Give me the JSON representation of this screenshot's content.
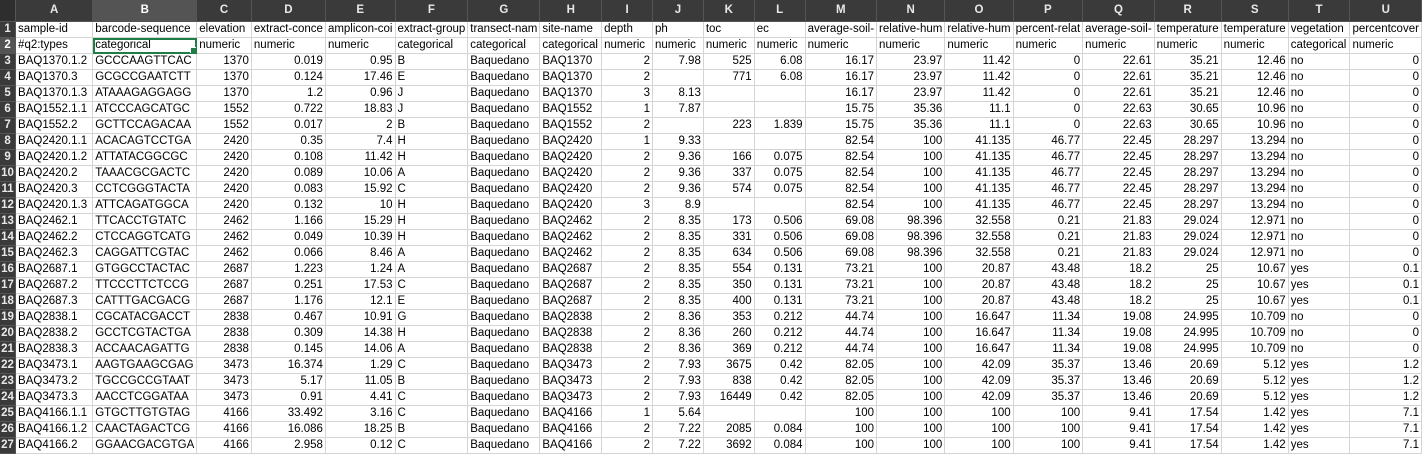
{
  "columns": [
    "A",
    "B",
    "C",
    "D",
    "E",
    "F",
    "G",
    "H",
    "I",
    "J",
    "K",
    "L",
    "M",
    "N",
    "O",
    "P",
    "Q",
    "R",
    "S",
    "T",
    "U"
  ],
  "numeric_cols": [
    2,
    3,
    4,
    8,
    9,
    10,
    11,
    12,
    13,
    14,
    15,
    16,
    17,
    18,
    20
  ],
  "selected_cell": "B2",
  "rows": [
    [
      "sample-id",
      "barcode-sequence",
      "elevation",
      "extract-conce",
      "amplicon-coi",
      "extract-group",
      "transect-nam",
      "site-name",
      "depth",
      "ph",
      "toc",
      "ec",
      "average-soil-",
      "relative-hum",
      "relative-hum",
      "percent-relat",
      "average-soil-",
      "temperature",
      "temperature",
      "vegetation",
      "percentcover"
    ],
    [
      "#q2:types",
      "categorical",
      "numeric",
      "numeric",
      "numeric",
      "categorical",
      "categorical",
      "categorical",
      "numeric",
      "numeric",
      "numeric",
      "numeric",
      "numeric",
      "numeric",
      "numeric",
      "numeric",
      "numeric",
      "numeric",
      "numeric",
      "categorical",
      "numeric"
    ],
    [
      "BAQ1370.1.2",
      "GCCCAAGTTCAC",
      "1370",
      "0.019",
      "0.95",
      "B",
      "Baquedano",
      "BAQ1370",
      "2",
      "7.98",
      "525",
      "6.08",
      "16.17",
      "23.97",
      "11.42",
      "0",
      "22.61",
      "35.21",
      "12.46",
      "no",
      "0"
    ],
    [
      "BAQ1370.3",
      "GCGCCGAATCTT",
      "1370",
      "0.124",
      "17.46",
      "E",
      "Baquedano",
      "BAQ1370",
      "2",
      "",
      "771",
      "6.08",
      "16.17",
      "23.97",
      "11.42",
      "0",
      "22.61",
      "35.21",
      "12.46",
      "no",
      "0"
    ],
    [
      "BAQ1370.1.3",
      "ATAAAGAGGAGG",
      "1370",
      "1.2",
      "0.96",
      "J",
      "Baquedano",
      "BAQ1370",
      "3",
      "8.13",
      "",
      "",
      "16.17",
      "23.97",
      "11.42",
      "0",
      "22.61",
      "35.21",
      "12.46",
      "no",
      "0"
    ],
    [
      "BAQ1552.1.1",
      "ATCCCAGCATGC",
      "1552",
      "0.722",
      "18.83",
      "J",
      "Baquedano",
      "BAQ1552",
      "1",
      "7.87",
      "",
      "",
      "15.75",
      "35.36",
      "11.1",
      "0",
      "22.63",
      "30.65",
      "10.96",
      "no",
      "0"
    ],
    [
      "BAQ1552.2",
      "GCTTCCAGACAA",
      "1552",
      "0.017",
      "2",
      "B",
      "Baquedano",
      "BAQ1552",
      "2",
      "",
      "223",
      "1.839",
      "15.75",
      "35.36",
      "11.1",
      "0",
      "22.63",
      "30.65",
      "10.96",
      "no",
      "0"
    ],
    [
      "BAQ2420.1.1",
      "ACACAGTCCTGA",
      "2420",
      "0.35",
      "7.4",
      "H",
      "Baquedano",
      "BAQ2420",
      "1",
      "9.33",
      "",
      "",
      "82.54",
      "100",
      "41.135",
      "46.77",
      "22.45",
      "28.297",
      "13.294",
      "no",
      "0"
    ],
    [
      "BAQ2420.1.2",
      "ATTATACGGCGC",
      "2420",
      "0.108",
      "11.42",
      "H",
      "Baquedano",
      "BAQ2420",
      "2",
      "9.36",
      "166",
      "0.075",
      "82.54",
      "100",
      "41.135",
      "46.77",
      "22.45",
      "28.297",
      "13.294",
      "no",
      "0"
    ],
    [
      "BAQ2420.2",
      "TAAACGCGACTC",
      "2420",
      "0.089",
      "10.06",
      "A",
      "Baquedano",
      "BAQ2420",
      "2",
      "9.36",
      "337",
      "0.075",
      "82.54",
      "100",
      "41.135",
      "46.77",
      "22.45",
      "28.297",
      "13.294",
      "no",
      "0"
    ],
    [
      "BAQ2420.3",
      "CCTCGGGTACTA",
      "2420",
      "0.083",
      "15.92",
      "C",
      "Baquedano",
      "BAQ2420",
      "2",
      "9.36",
      "574",
      "0.075",
      "82.54",
      "100",
      "41.135",
      "46.77",
      "22.45",
      "28.297",
      "13.294",
      "no",
      "0"
    ],
    [
      "BAQ2420.1.3",
      "ATTCAGATGGCA",
      "2420",
      "0.132",
      "10",
      "H",
      "Baquedano",
      "BAQ2420",
      "3",
      "8.9",
      "",
      "",
      "82.54",
      "100",
      "41.135",
      "46.77",
      "22.45",
      "28.297",
      "13.294",
      "no",
      "0"
    ],
    [
      "BAQ2462.1",
      "TTCACCTGTATC",
      "2462",
      "1.166",
      "15.29",
      "H",
      "Baquedano",
      "BAQ2462",
      "2",
      "8.35",
      "173",
      "0.506",
      "69.08",
      "98.396",
      "32.558",
      "0.21",
      "21.83",
      "29.024",
      "12.971",
      "no",
      "0"
    ],
    [
      "BAQ2462.2",
      "CTCCAGGTCATG",
      "2462",
      "0.049",
      "10.39",
      "H",
      "Baquedano",
      "BAQ2462",
      "2",
      "8.35",
      "331",
      "0.506",
      "69.08",
      "98.396",
      "32.558",
      "0.21",
      "21.83",
      "29.024",
      "12.971",
      "no",
      "0"
    ],
    [
      "BAQ2462.3",
      "CAGGATTCGTAC",
      "2462",
      "0.066",
      "8.46",
      "A",
      "Baquedano",
      "BAQ2462",
      "2",
      "8.35",
      "634",
      "0.506",
      "69.08",
      "98.396",
      "32.558",
      "0.21",
      "21.83",
      "29.024",
      "12.971",
      "no",
      "0"
    ],
    [
      "BAQ2687.1",
      "GTGGCCTACTAC",
      "2687",
      "1.223",
      "1.24",
      "A",
      "Baquedano",
      "BAQ2687",
      "2",
      "8.35",
      "554",
      "0.131",
      "73.21",
      "100",
      "20.87",
      "43.48",
      "18.2",
      "25",
      "10.67",
      "yes",
      "0.1"
    ],
    [
      "BAQ2687.2",
      "TTCCCTTCTCCG",
      "2687",
      "0.251",
      "17.53",
      "C",
      "Baquedano",
      "BAQ2687",
      "2",
      "8.35",
      "350",
      "0.131",
      "73.21",
      "100",
      "20.87",
      "43.48",
      "18.2",
      "25",
      "10.67",
      "yes",
      "0.1"
    ],
    [
      "BAQ2687.3",
      "CATTTGACGACG",
      "2687",
      "1.176",
      "12.1",
      "E",
      "Baquedano",
      "BAQ2687",
      "2",
      "8.35",
      "400",
      "0.131",
      "73.21",
      "100",
      "20.87",
      "43.48",
      "18.2",
      "25",
      "10.67",
      "yes",
      "0.1"
    ],
    [
      "BAQ2838.1",
      "CGCATACGACCT",
      "2838",
      "0.467",
      "10.91",
      "G",
      "Baquedano",
      "BAQ2838",
      "2",
      "8.36",
      "353",
      "0.212",
      "44.74",
      "100",
      "16.647",
      "11.34",
      "19.08",
      "24.995",
      "10.709",
      "no",
      "0"
    ],
    [
      "BAQ2838.2",
      "GCCTCGTACTGA",
      "2838",
      "0.309",
      "14.38",
      "H",
      "Baquedano",
      "BAQ2838",
      "2",
      "8.36",
      "260",
      "0.212",
      "44.74",
      "100",
      "16.647",
      "11.34",
      "19.08",
      "24.995",
      "10.709",
      "no",
      "0"
    ],
    [
      "BAQ2838.3",
      "ACCAACAGATTG",
      "2838",
      "0.145",
      "14.06",
      "A",
      "Baquedano",
      "BAQ2838",
      "2",
      "8.36",
      "369",
      "0.212",
      "44.74",
      "100",
      "16.647",
      "11.34",
      "19.08",
      "24.995",
      "10.709",
      "no",
      "0"
    ],
    [
      "BAQ3473.1",
      "AAGTGAAGCGAG",
      "3473",
      "16.374",
      "1.29",
      "C",
      "Baquedano",
      "BAQ3473",
      "2",
      "7.93",
      "3675",
      "0.42",
      "82.05",
      "100",
      "42.09",
      "35.37",
      "13.46",
      "20.69",
      "5.12",
      "yes",
      "1.2"
    ],
    [
      "BAQ3473.2",
      "TGCCGCCGTAAT",
      "3473",
      "5.17",
      "11.05",
      "B",
      "Baquedano",
      "BAQ3473",
      "2",
      "7.93",
      "838",
      "0.42",
      "82.05",
      "100",
      "42.09",
      "35.37",
      "13.46",
      "20.69",
      "5.12",
      "yes",
      "1.2"
    ],
    [
      "BAQ3473.3",
      "AACCTCGGATAA",
      "3473",
      "0.91",
      "4.41",
      "C",
      "Baquedano",
      "BAQ3473",
      "2",
      "7.93",
      "16449",
      "0.42",
      "82.05",
      "100",
      "42.09",
      "35.37",
      "13.46",
      "20.69",
      "5.12",
      "yes",
      "1.2"
    ],
    [
      "BAQ4166.1.1",
      "GTGCTTGTGTAG",
      "4166",
      "33.492",
      "3.16",
      "C",
      "Baquedano",
      "BAQ4166",
      "1",
      "5.64",
      "",
      "",
      "100",
      "100",
      "100",
      "100",
      "9.41",
      "17.54",
      "1.42",
      "yes",
      "7.1"
    ],
    [
      "BAQ4166.1.2",
      "CAACTAGACTCG",
      "4166",
      "16.086",
      "18.25",
      "B",
      "Baquedano",
      "BAQ4166",
      "2",
      "7.22",
      "2085",
      "0.084",
      "100",
      "100",
      "100",
      "100",
      "9.41",
      "17.54",
      "1.42",
      "yes",
      "7.1"
    ],
    [
      "BAQ4166.2",
      "GGAACGACGTGA",
      "4166",
      "2.958",
      "0.12",
      "C",
      "Baquedano",
      "BAQ4166",
      "2",
      "7.22",
      "3692",
      "0.084",
      "100",
      "100",
      "100",
      "100",
      "9.41",
      "17.54",
      "1.42",
      "yes",
      "7.1"
    ]
  ]
}
